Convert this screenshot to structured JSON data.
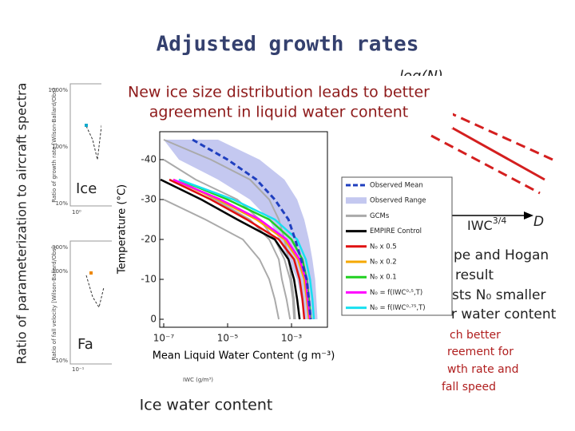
{
  "slide": {
    "title": "Adjusted growth rates",
    "side_label": "Ratio of parameterization to aircraft spectra",
    "log_n": "log(N)",
    "callout": [
      "New ice size distribution leads to better",
      "agreement in liquid water content"
    ],
    "ice_label": "Ice",
    "fall_label": "Fa",
    "iwc_axis": {
      "base": "IWC",
      "exp": "3/4"
    },
    "d_label": "D",
    "right_text": [
      "pe and Hogan",
      "result",
      "sts N₀ smaller",
      "r water content"
    ],
    "red_text": [
      "ch better",
      "reement for",
      "wth rate and",
      "fall speed"
    ],
    "bottom_label": "Ice water content",
    "thumbs": [
      {
        "ticks": [
          "1000%",
          "100%",
          "10%"
        ],
        "axis_label": "Ratio of growth rate [Wilson-Ballard/Obs]",
        "x_start": "10⁰"
      },
      {
        "ticks": [
          "300%",
          "100%",
          "10%"
        ],
        "axis_label": "Ratio of fall velocity [Wilson-Ballard/Obs]",
        "x_start": "10⁻¹"
      }
    ],
    "thumb_x_label": "IWC (g/m³)"
  },
  "chart_data": {
    "type": "line",
    "x_label": "Mean Liquid Water Content (g m⁻³)",
    "y_label": "Temperature (°C)",
    "log_x": true,
    "xlim": [
      7.5e-08,
      0.0133
    ],
    "xticks": [
      {
        "value": 1e-07,
        "label": "10⁻⁷"
      },
      {
        "value": 1e-05,
        "label": "10⁻⁵"
      },
      {
        "value": 0.001,
        "label": "10⁻³"
      }
    ],
    "ylim": [
      2,
      -47
    ],
    "yticks": [
      -40,
      -30,
      -20,
      -10,
      0
    ],
    "temperature": [
      -45,
      -40,
      -35,
      -30,
      -25,
      -20,
      -15,
      -10,
      -5,
      0
    ],
    "series": [
      {
        "name": "Observed Mean",
        "color": "#1f3fbf",
        "style": "dashed",
        "values": [
          8e-07,
          1e-05,
          8e-05,
          0.0003,
          0.0008,
          0.0013,
          0.002,
          0.003,
          0.0035,
          0.004
        ]
      },
      {
        "name": "Observed Range",
        "color": "#c4c8f0",
        "style": "band",
        "low": [
          1e-07,
          3e-07,
          5e-06,
          5e-05,
          0.0002,
          0.0004,
          0.0008,
          0.0015,
          0.002,
          0.0025
        ],
        "high": [
          5e-06,
          0.0001,
          0.0006,
          0.0015,
          0.0025,
          0.0035,
          0.0045,
          0.0055,
          0.006,
          0.0065
        ]
      },
      {
        "name": "GCMs",
        "color": "#aaaaaa",
        "style": "multi",
        "lines": [
          [
            1e-07,
            3e-06,
            5e-05,
            0.0002,
            0.0004,
            0.0006,
            0.0008,
            0.001,
            0.0012,
            0.0013
          ],
          [
            null,
            1e-07,
            1e-06,
            2e-05,
            0.0001,
            0.0003,
            0.0006,
            0.0009,
            0.0011,
            0.0012
          ],
          [
            null,
            null,
            3e-07,
            4e-06,
            5e-05,
            0.0002,
            0.0004,
            0.0005,
            0.0007,
            0.0009
          ],
          [
            null,
            null,
            null,
            1e-07,
            2e-06,
            3e-05,
            0.0001,
            0.0002,
            0.0003,
            0.0004
          ]
        ]
      },
      {
        "name": "EMPIRE Control",
        "color": "#000000",
        "style": "solid",
        "values": [
          null,
          null,
          8e-08,
          1.5e-06,
          2e-05,
          0.0003,
          0.0008,
          0.0012,
          0.0015,
          0.0018
        ]
      },
      {
        "name": "N₀ x 0.5",
        "color": "#e01010",
        "style": "solid",
        "values": [
          null,
          null,
          1.5e-07,
          3e-06,
          4e-05,
          0.0004,
          0.0012,
          0.0018,
          0.0022,
          0.0025
        ]
      },
      {
        "name": "N₀ x 0.2",
        "color": "#f5a800",
        "style": "solid",
        "values": [
          null,
          null,
          2e-07,
          5e-06,
          8e-05,
          0.0006,
          0.0016,
          0.0025,
          0.003,
          0.0035
        ]
      },
      {
        "name": "N₀ x 0.1",
        "color": "#20d020",
        "style": "solid",
        "values": [
          null,
          null,
          3e-07,
          1e-05,
          0.0002,
          0.001,
          0.0022,
          0.003,
          0.0035,
          0.004
        ]
      },
      {
        "name": "N₀ = f(IWC⁰·⁵,T)",
        "color": "#ff00ff",
        "style": "solid",
        "values": [
          null,
          null,
          2e-07,
          6e-06,
          0.0001,
          0.0007,
          0.0018,
          0.0028,
          0.0032,
          0.0038
        ]
      },
      {
        "name": "N₀ = f(IWC⁰·⁷⁵,T)",
        "color": "#18e0f0",
        "style": "solid",
        "values": [
          null,
          null,
          3e-07,
          1.5e-05,
          0.0003,
          0.0015,
          0.0028,
          0.0038,
          0.0045,
          0.005
        ]
      }
    ]
  }
}
